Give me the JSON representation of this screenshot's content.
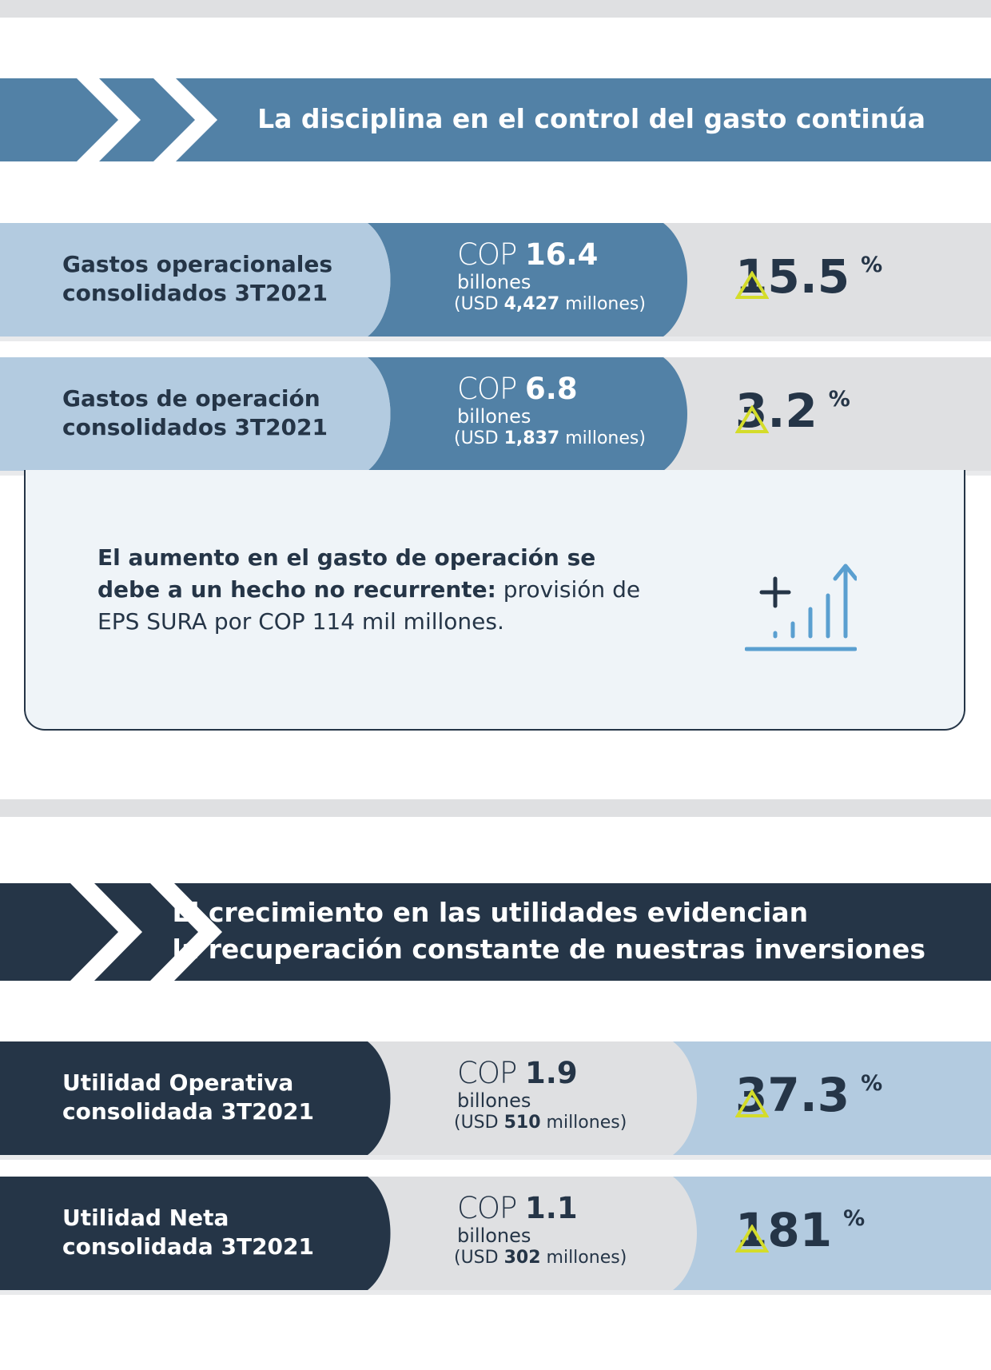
{
  "section1": {
    "title": "La disciplina en el control del gasto continúa",
    "colors": {
      "banner": "#5281a6",
      "label_bg": "#b3cbe0",
      "amount_bg": "#5281a6",
      "pct_bg": "#dfe0e2"
    },
    "rows": [
      {
        "label_line1": "Gastos operacionales",
        "label_line2": "consolidados 3T2021",
        "cop_prefix": "COP",
        "cop_value": "16.4",
        "billones": "billones",
        "usd_prefix": "(USD",
        "usd_value": "4,427",
        "usd_suffix": "millones)",
        "pct_value": "15.5",
        "pct_sign": "%"
      },
      {
        "label_line1": "Gastos de operación",
        "label_line2": "consolidados 3T2021",
        "cop_prefix": "COP",
        "cop_value": "6.8",
        "billones": "billones",
        "usd_prefix": "(USD",
        "usd_value": "1,837",
        "usd_suffix": "millones)",
        "pct_value": "3.2",
        "pct_sign": "%"
      }
    ],
    "note": {
      "bold_text": "El aumento en el gasto de operación se debe a un hecho no recurrente:",
      "text": " provisión de EPS SURA por COP 114 mil millones.",
      "icon": "growth-chart-icon"
    }
  },
  "section2": {
    "title_line1": "El crecimiento en las utilidades evidencian",
    "title_line2": "la recuperación constante de nuestras inversiones",
    "colors": {
      "banner": "#253547",
      "label_bg": "#253547",
      "amount_bg": "#dfe0e2",
      "pct_bg": "#b3cbe0"
    },
    "rows": [
      {
        "label_line1": "Utilidad Operativa",
        "label_line2": "consolidada 3T2021",
        "cop_prefix": "COP",
        "cop_value": "1.9",
        "billones": "billones",
        "usd_prefix": "(USD",
        "usd_value": "510",
        "usd_suffix": "millones)",
        "pct_value": "37.3",
        "pct_sign": "%"
      },
      {
        "label_line1": "Utilidad Neta",
        "label_line2": "consolidada 3T2021",
        "cop_prefix": "COP",
        "cop_value": "1.1",
        "billones": "billones",
        "usd_prefix": "(USD",
        "usd_value": "302",
        "usd_suffix": "millones)",
        "pct_value": "181",
        "pct_sign": "%"
      }
    ]
  },
  "icons": {
    "increase": "triangle-up-icon",
    "chevron": "double-chevron-icon"
  }
}
